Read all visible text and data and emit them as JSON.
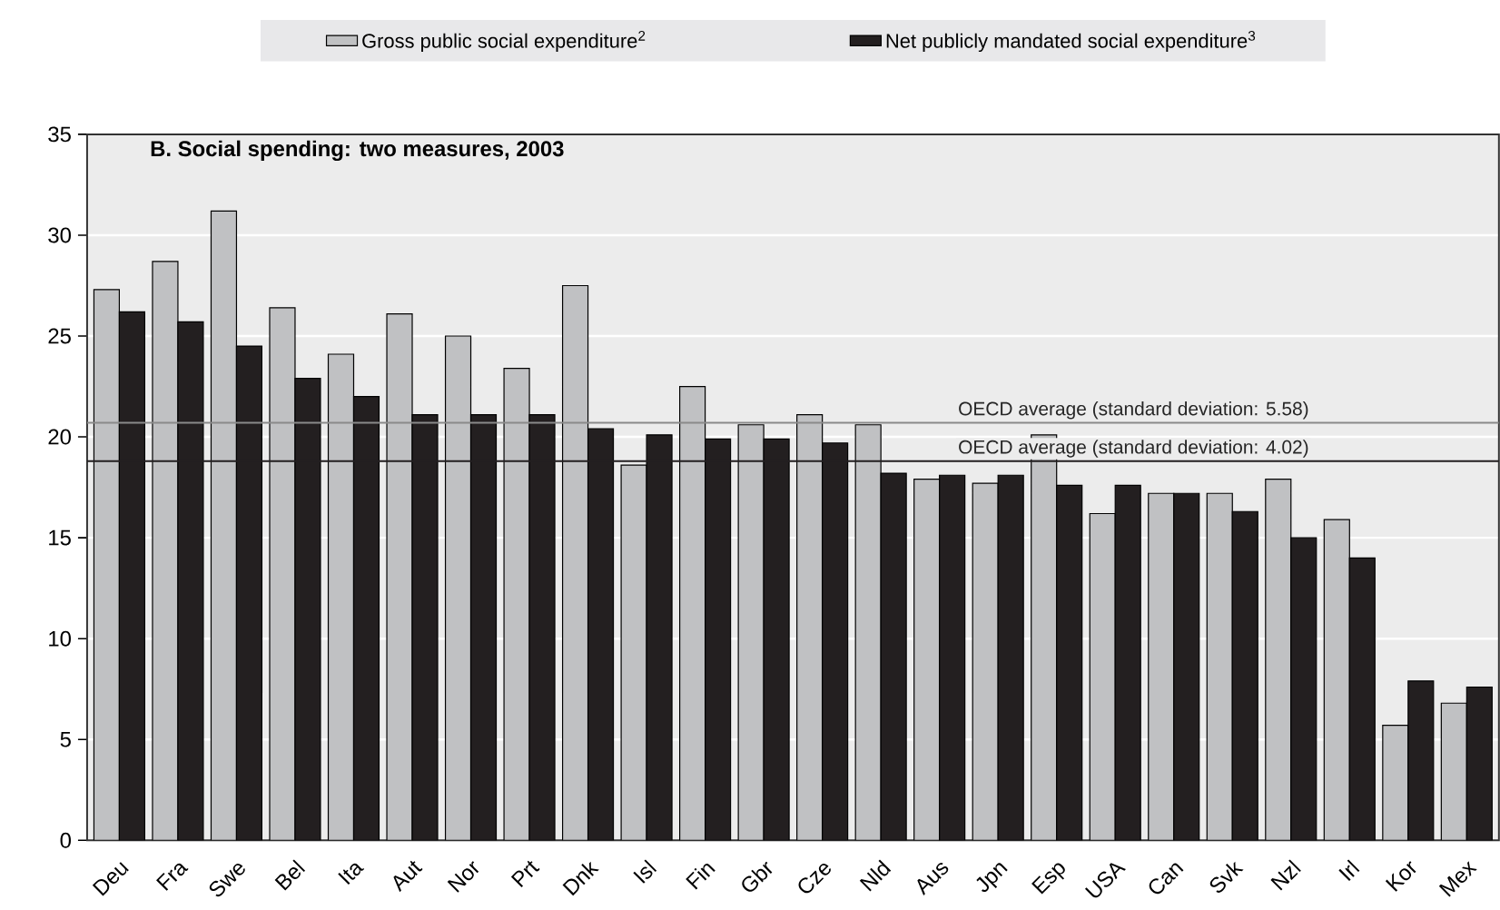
{
  "chart_data": {
    "type": "bar",
    "title": "B. Social spending: two measures, 2003",
    "categories": [
      "Deu",
      "Fra",
      "Swe",
      "Bel",
      "Ita",
      "Aut",
      "Nor",
      "Prt",
      "Dnk",
      "Isl",
      "Fin",
      "Gbr",
      "Cze",
      "Nld",
      "Aus",
      "Jpn",
      "Esp",
      "USA",
      "Can",
      "Svk",
      "Nzl",
      "Irl",
      "Kor",
      "Mex"
    ],
    "series": [
      {
        "name": "Gross public social expenditure$^{2}$",
        "color": "#c0c1c3",
        "values": [
          27.3,
          28.7,
          31.2,
          26.4,
          24.1,
          26.1,
          25.0,
          23.4,
          27.5,
          18.6,
          22.5,
          20.6,
          21.1,
          20.6,
          17.9,
          17.7,
          20.1,
          16.2,
          17.2,
          17.2,
          17.9,
          15.9,
          5.7,
          6.8
        ]
      },
      {
        "name": "Net publicly mandated social expenditure$^{3}$",
        "color": "#231f20",
        "values": [
          26.2,
          25.7,
          24.5,
          22.9,
          22.0,
          21.1,
          21.1,
          21.1,
          20.4,
          20.1,
          19.9,
          19.9,
          19.7,
          18.2,
          18.1,
          18.1,
          17.6,
          17.6,
          17.2,
          16.3,
          15.0,
          14.0,
          7.9,
          7.6
        ]
      }
    ],
    "ylim": [
      0,
      35
    ],
    "yticks": [
      0,
      5,
      10,
      15,
      20,
      25,
      30,
      35
    ],
    "grid": "y",
    "legend": "top",
    "ref_lines": [
      {
        "axis": "y",
        "value": 20.7,
        "color": "#8a8a8a"
      },
      {
        "axis": "y",
        "value": 18.8,
        "color": "#231f20"
      }
    ],
    "annotations": [
      {
        "text": "OECD average (standard deviation: 5.58)",
        "y": 20.7
      },
      {
        "text": "OECD average (standard deviation: 4.02)",
        "y": 18.8
      }
    ]
  }
}
